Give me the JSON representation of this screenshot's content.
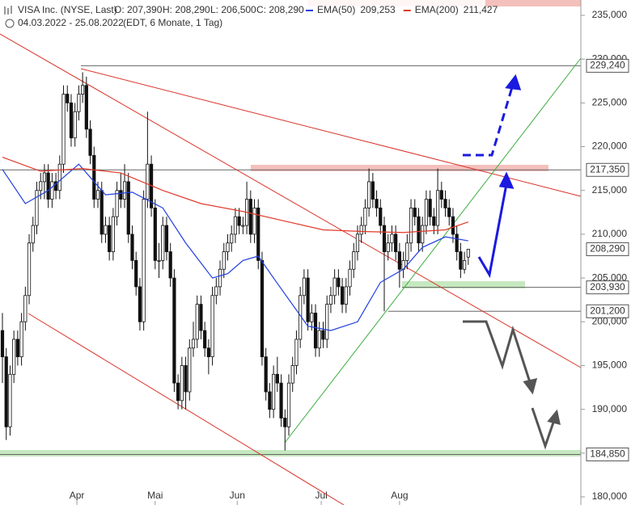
{
  "chart_data": {
    "type": "candlestick",
    "header": {
      "title": "VISA Inc. (NYSE, Last)",
      "quote": [
        "O: 207,390",
        "H: 208,290",
        "L: 206,500",
        "C: 208,290"
      ],
      "range": "04.03.2022 - 25.08.2022",
      "info": "(EDT, 6 Monate, 1 Tag)"
    },
    "ylim": [
      180,
      235
    ],
    "yticks": [
      {
        "value": 180,
        "label": "180,000"
      },
      {
        "value": 185,
        "label": "185,000"
      },
      {
        "value": 190,
        "label": "190,000"
      },
      {
        "value": 195,
        "label": "195,000"
      },
      {
        "value": 200,
        "label": "200,000"
      },
      {
        "value": 205,
        "label": "205,000"
      },
      {
        "value": 210,
        "label": "210,000"
      },
      {
        "value": 215,
        "label": "215,000"
      },
      {
        "value": 220,
        "label": "220,000"
      },
      {
        "value": 225,
        "label": "225,000"
      },
      {
        "value": 230,
        "label": "230,000"
      },
      {
        "value": 235,
        "label": "235,000"
      }
    ],
    "xticks": [
      {
        "value": 19.5,
        "label": "Apr"
      },
      {
        "value": 40,
        "label": "Mai"
      },
      {
        "value": 61.5,
        "label": "Jun"
      },
      {
        "value": 83.5,
        "label": "Jul"
      },
      {
        "value": 104,
        "label": "Aug"
      }
    ],
    "levels": [
      {
        "value": 229.24,
        "label": "229,240"
      },
      {
        "value": 217.35,
        "label": "217,350"
      },
      {
        "value": 208.29,
        "label": "208,290"
      },
      {
        "value": 203.93,
        "label": "203,930"
      },
      {
        "value": 201.2,
        "label": "201,200"
      },
      {
        "value": 184.85,
        "label": "184,850"
      }
    ],
    "ohlc": [
      [
        199,
        201,
        193,
        196
      ],
      [
        196,
        197,
        186.5,
        188
      ],
      [
        188,
        195,
        187,
        194
      ],
      [
        194,
        199,
        193,
        198
      ],
      [
        198,
        199,
        195,
        196
      ],
      [
        196,
        201,
        195,
        200
      ],
      [
        200,
        204,
        199,
        203
      ],
      [
        203,
        210,
        202,
        209
      ],
      [
        209,
        212,
        208,
        211
      ],
      [
        211,
        216,
        210,
        215
      ],
      [
        215,
        217,
        214,
        216
      ],
      [
        216,
        218,
        214,
        217
      ],
      [
        217,
        218,
        213,
        214
      ],
      [
        214,
        217,
        213,
        216
      ],
      [
        216,
        217,
        214,
        215
      ],
      [
        215,
        219,
        214,
        218
      ],
      [
        218,
        227,
        217,
        226
      ],
      [
        226,
        227,
        224,
        225
      ],
      [
        225,
        226,
        220,
        221
      ],
      [
        221,
        225,
        220,
        224
      ],
      [
        224,
        227,
        223,
        226
      ],
      [
        226,
        228.5,
        225,
        227
      ],
      [
        227,
        228,
        221,
        222
      ],
      [
        222,
        223,
        218,
        219
      ],
      [
        219,
        220,
        213,
        214
      ],
      [
        214,
        216,
        213,
        215
      ],
      [
        215,
        216,
        209,
        210
      ],
      [
        210,
        212,
        209,
        211
      ],
      [
        211,
        212,
        207,
        208
      ],
      [
        208,
        213,
        207,
        212
      ],
      [
        212,
        216,
        211,
        215
      ],
      [
        215,
        217,
        213,
        214
      ],
      [
        214,
        218,
        213,
        216
      ],
      [
        216,
        217,
        209,
        210
      ],
      [
        210,
        211,
        206,
        207
      ],
      [
        207,
        208,
        203,
        204
      ],
      [
        204,
        205,
        199,
        200
      ],
      [
        200,
        215,
        199,
        214
      ],
      [
        214,
        224,
        213,
        218
      ],
      [
        218,
        219,
        212,
        213
      ],
      [
        213,
        214,
        206,
        207
      ],
      [
        207,
        209,
        205,
        207
      ],
      [
        207,
        212,
        206,
        211
      ],
      [
        211,
        212,
        207,
        208
      ],
      [
        208,
        209,
        204,
        205
      ],
      [
        205,
        206,
        192,
        193
      ],
      [
        193,
        194,
        190,
        191
      ],
      [
        191,
        196,
        190,
        195
      ],
      [
        195,
        196,
        190,
        192
      ],
      [
        192,
        198,
        191,
        197
      ],
      [
        197,
        200,
        196,
        198
      ],
      [
        198,
        203,
        197,
        202
      ],
      [
        202,
        203,
        198,
        199
      ],
      [
        199,
        200,
        196,
        197
      ],
      [
        197,
        198,
        194,
        196
      ],
      [
        196,
        204,
        195,
        203
      ],
      [
        203,
        205,
        202,
        204
      ],
      [
        204,
        207,
        203,
        206
      ],
      [
        206,
        209,
        205,
        208
      ],
      [
        208,
        210,
        207,
        209
      ],
      [
        209,
        211,
        208,
        210
      ],
      [
        210,
        213,
        209,
        212
      ],
      [
        212,
        213,
        210,
        211
      ],
      [
        211,
        212,
        210,
        211
      ],
      [
        211,
        216,
        210,
        214
      ],
      [
        214,
        215,
        209,
        210
      ],
      [
        210,
        214,
        209,
        213
      ],
      [
        213,
        214,
        206,
        207
      ],
      [
        207,
        208,
        195,
        196
      ],
      [
        196,
        197,
        191,
        192
      ],
      [
        192,
        193,
        189,
        190
      ],
      [
        190,
        195,
        189,
        194
      ],
      [
        194,
        196,
        192,
        193
      ],
      [
        193,
        194,
        188,
        189
      ],
      [
        189,
        190,
        185.3,
        188
      ],
      [
        188,
        194,
        187,
        193
      ],
      [
        193,
        196,
        192,
        195
      ],
      [
        195,
        199,
        194,
        198
      ],
      [
        198,
        204,
        197,
        203
      ],
      [
        203,
        206,
        202,
        205
      ],
      [
        205,
        206,
        199,
        200
      ],
      [
        200,
        202,
        199,
        201
      ],
      [
        201,
        202,
        196,
        197
      ],
      [
        197,
        200,
        196,
        199
      ],
      [
        199,
        200,
        197,
        198
      ],
      [
        198,
        203,
        197,
        202
      ],
      [
        202,
        204,
        201,
        203
      ],
      [
        203,
        206,
        202,
        205
      ],
      [
        205,
        206,
        203,
        204
      ],
      [
        204,
        205,
        201,
        202
      ],
      [
        202,
        205,
        201,
        204
      ],
      [
        204,
        207,
        203,
        206
      ],
      [
        206,
        209,
        205,
        208
      ],
      [
        208,
        211,
        207,
        210
      ],
      [
        210,
        212,
        209,
        211
      ],
      [
        211,
        214,
        210,
        213
      ],
      [
        213,
        217.5,
        212,
        216
      ],
      [
        216,
        217,
        213,
        214
      ],
      [
        214,
        215,
        212,
        213
      ],
      [
        213,
        214,
        210,
        211
      ],
      [
        211,
        212,
        201.2,
        208
      ],
      [
        208,
        210,
        207,
        209
      ],
      [
        209,
        211,
        208,
        210
      ],
      [
        210,
        211,
        207,
        208
      ],
      [
        208,
        209,
        203.9,
        206
      ],
      [
        206,
        208,
        205,
        207
      ],
      [
        207,
        210,
        206,
        209
      ],
      [
        209,
        214,
        208,
        213
      ],
      [
        213,
        214,
        211,
        212
      ],
      [
        212,
        213,
        208,
        209
      ],
      [
        209,
        212,
        208,
        211
      ],
      [
        211,
        215,
        210,
        214
      ],
      [
        214,
        215,
        211,
        212
      ],
      [
        212,
        213,
        210,
        211
      ],
      [
        211,
        217.5,
        210,
        215
      ],
      [
        215,
        216,
        213,
        214
      ],
      [
        214,
        215,
        212,
        213
      ],
      [
        213,
        214,
        211,
        212
      ],
      [
        212,
        213,
        209,
        210
      ],
      [
        210,
        211,
        207,
        208
      ],
      [
        208,
        209,
        205,
        206
      ],
      [
        206,
        208,
        205.5,
        207
      ],
      [
        207.39,
        208.29,
        206.5,
        208.29
      ]
    ],
    "series": [
      {
        "name": "EMA(50)",
        "color": "#1f3fe0",
        "last": {
          "value": 209.253,
          "label": "209,253"
        },
        "x": [
          0,
          6,
          12,
          20,
          27,
          34,
          42,
          48,
          55,
          59,
          63,
          67,
          71,
          80,
          86,
          93,
          99,
          105,
          110,
          116,
          122
        ],
        "values": [
          217.4,
          213.5,
          215,
          218,
          214.5,
          214.8,
          213,
          209,
          205,
          205.5,
          207,
          207.5,
          205,
          199.5,
          199,
          200,
          204.5,
          206,
          208.5,
          209.7,
          209.25
        ]
      },
      {
        "name": "EMA(200)",
        "color": "#e03a2a",
        "last": {
          "value": 211.427,
          "label": "211,427"
        },
        "x": [
          0,
          10,
          21,
          31,
          42,
          52,
          63,
          74,
          84,
          95,
          105,
          116,
          122
        ],
        "values": [
          218.8,
          217.2,
          217.5,
          217,
          215,
          213.5,
          212.6,
          211.5,
          210.5,
          210.3,
          210.2,
          210.5,
          211.4
        ]
      }
    ]
  }
}
